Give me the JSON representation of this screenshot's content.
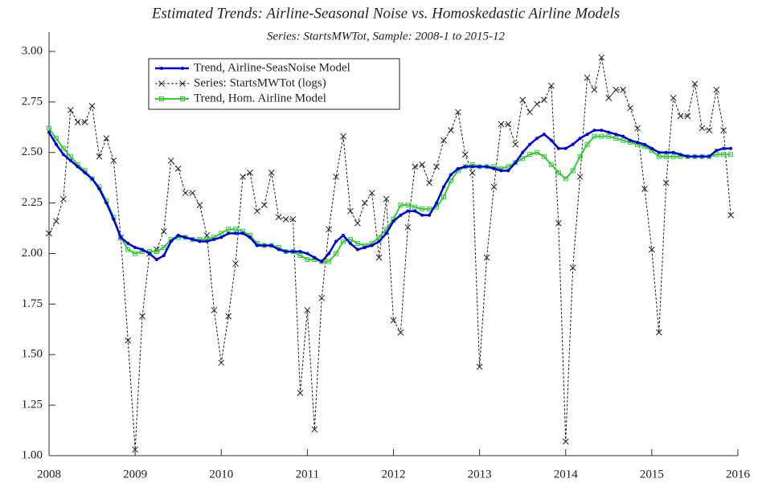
{
  "chart_data": {
    "type": "line",
    "title": "Estimated Trends: Airline-Seasonal Noise vs. Homoskedastic Airline Models",
    "subtitle": "Series: StartsMWTot, Sample: 2008-1 to 2015-12",
    "legend": "top-left",
    "x": [
      2008,
      2008.0833,
      2008.1667,
      2008.25,
      2008.3333,
      2008.4167,
      2008.5,
      2008.5833,
      2008.6667,
      2008.75,
      2008.8333,
      2008.9167,
      2009,
      2009.0833,
      2009.1667,
      2009.25,
      2009.3333,
      2009.4167,
      2009.5,
      2009.5833,
      2009.6667,
      2009.75,
      2009.8333,
      2009.9167,
      2010,
      2010.0833,
      2010.1667,
      2010.25,
      2010.3333,
      2010.4167,
      2010.5,
      2010.5833,
      2010.6667,
      2010.75,
      2010.8333,
      2010.9167,
      2011,
      2011.0833,
      2011.1667,
      2011.25,
      2011.3333,
      2011.4167,
      2011.5,
      2011.5833,
      2011.6667,
      2011.75,
      2011.8333,
      2011.9167,
      2012,
      2012.0833,
      2012.1667,
      2012.25,
      2012.3333,
      2012.4167,
      2012.5,
      2012.5833,
      2012.6667,
      2012.75,
      2012.8333,
      2012.9167,
      2013,
      2013.0833,
      2013.1667,
      2013.25,
      2013.3333,
      2013.4167,
      2013.5,
      2013.5833,
      2013.6667,
      2013.75,
      2013.8333,
      2013.9167,
      2014,
      2014.0833,
      2014.1667,
      2014.25,
      2014.3333,
      2014.4167,
      2014.5,
      2014.5833,
      2014.6667,
      2014.75,
      2014.8333,
      2014.9167,
      2015,
      2015.0833,
      2015.1667,
      2015.25,
      2015.3333,
      2015.4167,
      2015.5,
      2015.5833,
      2015.6667,
      2015.75,
      2015.8333,
      2015.9167
    ],
    "series": [
      {
        "name": "Trend, Airline-SeasNoise Model",
        "color": "#0000e0",
        "marker": "dot",
        "values": [
          2.6,
          2.54,
          2.49,
          2.46,
          2.43,
          2.4,
          2.37,
          2.32,
          2.25,
          2.17,
          2.08,
          2.05,
          2.03,
          2.02,
          2.0,
          1.97,
          1.99,
          2.06,
          2.09,
          2.08,
          2.07,
          2.06,
          2.06,
          2.07,
          2.08,
          2.1,
          2.1,
          2.1,
          2.08,
          2.04,
          2.04,
          2.04,
          2.02,
          2.01,
          2.01,
          2.01,
          2.0,
          1.98,
          1.96,
          2.0,
          2.06,
          2.09,
          2.05,
          2.02,
          2.03,
          2.04,
          2.06,
          2.1,
          2.16,
          2.19,
          2.21,
          2.21,
          2.19,
          2.19,
          2.25,
          2.33,
          2.39,
          2.42,
          2.43,
          2.43,
          2.43,
          2.43,
          2.42,
          2.41,
          2.41,
          2.45,
          2.5,
          2.54,
          2.57,
          2.59,
          2.56,
          2.52,
          2.52,
          2.54,
          2.57,
          2.59,
          2.61,
          2.61,
          2.6,
          2.59,
          2.58,
          2.56,
          2.55,
          2.54,
          2.52,
          2.5,
          2.5,
          2.5,
          2.49,
          2.48,
          2.48,
          2.48,
          2.48,
          2.51,
          2.52,
          2.52
        ]
      },
      {
        "name": "Series: StartsMWTot (logs)",
        "color": "#222222",
        "marker": "x",
        "values": [
          2.1,
          2.16,
          2.27,
          2.71,
          2.65,
          2.65,
          2.73,
          2.48,
          2.57,
          2.46,
          2.08,
          1.57,
          1.03,
          1.69,
          2.0,
          2.02,
          2.11,
          2.46,
          2.42,
          2.3,
          2.3,
          2.24,
          2.09,
          1.72,
          1.46,
          1.69,
          1.95,
          2.38,
          2.4,
          2.21,
          2.24,
          2.4,
          2.18,
          2.17,
          2.17,
          1.31,
          1.72,
          1.13,
          1.78,
          2.12,
          2.38,
          2.58,
          2.21,
          2.15,
          2.25,
          2.3,
          1.98,
          2.27,
          1.67,
          1.61,
          2.13,
          2.43,
          2.44,
          2.35,
          2.43,
          2.56,
          2.61,
          2.7,
          2.49,
          2.4,
          1.44,
          1.98,
          2.33,
          2.64,
          2.64,
          2.54,
          2.76,
          2.7,
          2.74,
          2.76,
          2.83,
          2.15,
          1.07,
          1.93,
          2.38,
          2.87,
          2.81,
          2.97,
          2.77,
          2.81,
          2.81,
          2.72,
          2.62,
          2.32,
          2.02,
          1.61,
          2.35,
          2.77,
          2.68,
          2.68,
          2.84,
          2.62,
          2.61,
          2.81,
          2.61,
          2.19
        ]
      },
      {
        "name": "Trend, Hom. Airline Model",
        "color": "#33cc33",
        "marker": "square",
        "values": [
          2.62,
          2.57,
          2.52,
          2.48,
          2.44,
          2.41,
          2.37,
          2.33,
          2.26,
          2.18,
          2.08,
          2.02,
          2.0,
          2.01,
          2.01,
          2.01,
          2.03,
          2.07,
          2.08,
          2.08,
          2.07,
          2.07,
          2.07,
          2.08,
          2.1,
          2.12,
          2.12,
          2.11,
          2.09,
          2.05,
          2.04,
          2.04,
          2.03,
          2.01,
          2.01,
          1.99,
          1.97,
          1.97,
          1.96,
          1.96,
          2.0,
          2.06,
          2.07,
          2.05,
          2.04,
          2.05,
          2.08,
          2.12,
          2.17,
          2.24,
          2.24,
          2.23,
          2.22,
          2.22,
          2.23,
          2.28,
          2.36,
          2.41,
          2.43,
          2.44,
          2.43,
          2.43,
          2.43,
          2.42,
          2.43,
          2.45,
          2.47,
          2.49,
          2.5,
          2.48,
          2.44,
          2.4,
          2.37,
          2.41,
          2.48,
          2.54,
          2.58,
          2.58,
          2.58,
          2.57,
          2.56,
          2.55,
          2.54,
          2.53,
          2.51,
          2.48,
          2.48,
          2.48,
          2.48,
          2.48,
          2.48,
          2.48,
          2.48,
          2.49,
          2.49,
          2.49
        ]
      }
    ],
    "xlim": [
      2008,
      2016
    ],
    "xticks": [
      2008,
      2009,
      2010,
      2011,
      2012,
      2013,
      2014,
      2015,
      2016
    ],
    "ylim": [
      1.0,
      3.0
    ],
    "yticks": [
      {
        "value": 1,
        "label": "1.00"
      },
      {
        "value": 1.25,
        "label": "1.25"
      },
      {
        "value": 1.5,
        "label": "1.50"
      },
      {
        "value": 1.75,
        "label": "1.75"
      },
      {
        "value": 2,
        "label": "2.00"
      },
      {
        "value": 2.25,
        "label": "2.25"
      },
      {
        "value": 2.5,
        "label": "2.50"
      },
      {
        "value": 2.75,
        "label": "2.75"
      },
      {
        "value": 3,
        "label": "3.00"
      }
    ]
  }
}
